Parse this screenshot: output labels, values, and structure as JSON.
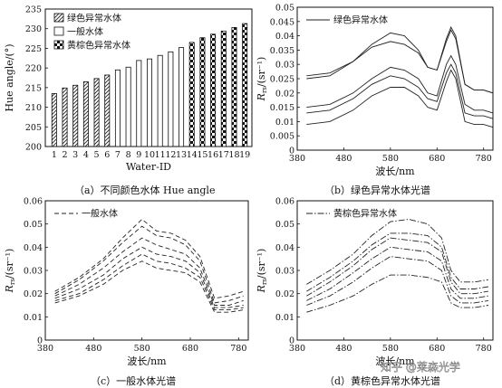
{
  "captions": [
    "（a）不同颜色水体 Hue angle",
    "（b）绿色异常水体光谱",
    "（c）一般水体光谱",
    "（d）黄棕色异常水体光谱"
  ],
  "watermark": "知乎 @莱森光学",
  "chart_data": [
    {
      "type": "bar",
      "xlabel": "Water-ID",
      "ylabel": "Hue angle/(°)",
      "ylim": [
        200,
        235
      ],
      "yticks": [
        200,
        205,
        210,
        215,
        220,
        225,
        230,
        235
      ],
      "categories": [
        "1",
        "2",
        "3",
        "4",
        "5",
        "6",
        "7",
        "8",
        "9",
        "10",
        "11",
        "12",
        "13",
        "14",
        "15",
        "16",
        "17",
        "18",
        "19"
      ],
      "series": [
        {
          "name": "绿色异常水体",
          "pattern": "hatch",
          "values": [
            213.5,
            214.9,
            215.6,
            216.5,
            217.3,
            218.2,
            null,
            null,
            null,
            null,
            null,
            null,
            null,
            null,
            null,
            null,
            null,
            null,
            null
          ]
        },
        {
          "name": "一般水体",
          "pattern": "solid",
          "values": [
            null,
            null,
            null,
            null,
            null,
            null,
            219.5,
            220.2,
            221.9,
            222.3,
            223.2,
            224.1,
            225.2,
            null,
            null,
            null,
            null,
            null,
            null
          ]
        },
        {
          "name": "黄棕色异常水体",
          "pattern": "checker",
          "values": [
            null,
            null,
            null,
            null,
            null,
            null,
            null,
            null,
            null,
            null,
            null,
            null,
            null,
            226.5,
            227.7,
            228.6,
            229.4,
            230.3,
            231.3
          ]
        }
      ],
      "legend_position": "top-left"
    },
    {
      "type": "line",
      "xlabel": "波长/nm",
      "ylabel": "Rrs/(sr⁻¹)",
      "xlim": [
        380,
        800
      ],
      "ylim": [
        0,
        0.05
      ],
      "xticks": [
        380,
        480,
        580,
        680,
        780
      ],
      "yticks": [
        0,
        0.005,
        0.01,
        0.015,
        0.02,
        0.025,
        0.03,
        0.035,
        0.04,
        0.045,
        0.05
      ],
      "legend": "绿色异常水体",
      "legend_position": "top-left",
      "line_style": "solid",
      "series": [
        {
          "x": [
            400,
            450,
            500,
            540,
            580,
            610,
            640,
            660,
            680,
            700,
            710,
            720,
            740,
            760,
            780,
            800
          ],
          "y": [
            0.025,
            0.026,
            0.031,
            0.037,
            0.041,
            0.04,
            0.035,
            0.029,
            0.028,
            0.039,
            0.043,
            0.04,
            0.023,
            0.021,
            0.021,
            0.02
          ]
        },
        {
          "x": [
            400,
            450,
            500,
            540,
            580,
            610,
            640,
            660,
            680,
            700,
            710,
            720,
            740,
            760,
            780,
            800
          ],
          "y": [
            0.026,
            0.027,
            0.031,
            0.036,
            0.038,
            0.037,
            0.034,
            0.029,
            0.028,
            0.038,
            0.042,
            0.039,
            0.023,
            0.021,
            0.021,
            0.02
          ]
        },
        {
          "x": [
            400,
            450,
            500,
            540,
            580,
            610,
            640,
            660,
            680,
            700,
            710,
            720,
            740,
            760,
            780,
            800
          ],
          "y": [
            0.015,
            0.016,
            0.02,
            0.025,
            0.029,
            0.028,
            0.025,
            0.02,
            0.019,
            0.03,
            0.033,
            0.03,
            0.016,
            0.014,
            0.014,
            0.013
          ]
        },
        {
          "x": [
            400,
            450,
            500,
            540,
            580,
            610,
            640,
            660,
            680,
            700,
            710,
            720,
            740,
            760,
            780,
            800
          ],
          "y": [
            0.013,
            0.014,
            0.018,
            0.023,
            0.026,
            0.025,
            0.022,
            0.018,
            0.017,
            0.027,
            0.03,
            0.027,
            0.013,
            0.012,
            0.012,
            0.011
          ]
        },
        {
          "x": [
            400,
            450,
            500,
            540,
            580,
            610,
            640,
            660,
            680,
            700,
            710,
            720,
            740,
            760,
            780,
            800
          ],
          "y": [
            0.009,
            0.01,
            0.014,
            0.019,
            0.022,
            0.022,
            0.019,
            0.015,
            0.014,
            0.024,
            0.028,
            0.025,
            0.01,
            0.009,
            0.009,
            0.008
          ]
        }
      ]
    },
    {
      "type": "line",
      "xlabel": "波长/nm",
      "ylabel": "Rrs/(sr⁻¹)",
      "xlim": [
        380,
        800
      ],
      "ylim": [
        0,
        0.06
      ],
      "xticks": [
        380,
        480,
        580,
        680,
        780
      ],
      "yticks": [
        0,
        0.01,
        0.02,
        0.03,
        0.04,
        0.05,
        0.06
      ],
      "legend": "一般水体",
      "legend_position": "top-left",
      "line_style": "dashed",
      "series": [
        {
          "x": [
            400,
            450,
            500,
            540,
            580,
            610,
            640,
            670,
            700,
            730,
            760,
            790
          ],
          "y": [
            0.021,
            0.027,
            0.035,
            0.044,
            0.052,
            0.047,
            0.046,
            0.043,
            0.036,
            0.018,
            0.019,
            0.021
          ]
        },
        {
          "x": [
            400,
            450,
            500,
            540,
            580,
            610,
            640,
            670,
            700,
            730,
            760,
            790
          ],
          "y": [
            0.02,
            0.026,
            0.034,
            0.042,
            0.049,
            0.045,
            0.044,
            0.041,
            0.034,
            0.016,
            0.017,
            0.019
          ]
        },
        {
          "x": [
            400,
            450,
            500,
            540,
            580,
            610,
            640,
            670,
            700,
            730,
            760,
            790
          ],
          "y": [
            0.019,
            0.024,
            0.031,
            0.038,
            0.044,
            0.041,
            0.039,
            0.037,
            0.031,
            0.015,
            0.015,
            0.017
          ]
        },
        {
          "x": [
            400,
            450,
            500,
            540,
            580,
            610,
            640,
            670,
            700,
            730,
            760,
            790
          ],
          "y": [
            0.018,
            0.022,
            0.028,
            0.035,
            0.04,
            0.037,
            0.036,
            0.034,
            0.029,
            0.014,
            0.014,
            0.015
          ]
        },
        {
          "x": [
            400,
            450,
            500,
            540,
            580,
            610,
            640,
            670,
            700,
            730,
            760,
            790
          ],
          "y": [
            0.017,
            0.02,
            0.026,
            0.032,
            0.037,
            0.034,
            0.033,
            0.031,
            0.027,
            0.013,
            0.013,
            0.014
          ]
        },
        {
          "x": [
            400,
            450,
            500,
            540,
            580,
            610,
            640,
            670,
            700,
            730,
            760,
            790
          ],
          "y": [
            0.016,
            0.019,
            0.024,
            0.03,
            0.034,
            0.031,
            0.03,
            0.029,
            0.025,
            0.012,
            0.012,
            0.013
          ]
        }
      ]
    },
    {
      "type": "line",
      "xlabel": "波长/nm",
      "ylabel": "Rrs/(sr⁻¹)",
      "xlim": [
        380,
        800
      ],
      "ylim": [
        0,
        0.06
      ],
      "xticks": [
        380,
        480,
        580,
        680,
        780
      ],
      "yticks": [
        0,
        0.01,
        0.02,
        0.03,
        0.04,
        0.05,
        0.06
      ],
      "legend": "黄棕色异常水体",
      "legend_position": "top-left",
      "line_style": "dashdot",
      "series": [
        {
          "x": [
            400,
            450,
            500,
            540,
            580,
            620,
            660,
            690,
            710,
            730,
            760,
            790
          ],
          "y": [
            0.024,
            0.03,
            0.037,
            0.045,
            0.051,
            0.052,
            0.05,
            0.044,
            0.03,
            0.025,
            0.025,
            0.026
          ]
        },
        {
          "x": [
            400,
            450,
            500,
            540,
            580,
            620,
            660,
            690,
            710,
            730,
            760,
            790
          ],
          "y": [
            0.021,
            0.027,
            0.034,
            0.041,
            0.046,
            0.046,
            0.045,
            0.04,
            0.027,
            0.022,
            0.022,
            0.023
          ]
        },
        {
          "x": [
            400,
            450,
            500,
            540,
            580,
            620,
            660,
            690,
            710,
            730,
            760,
            790
          ],
          "y": [
            0.019,
            0.025,
            0.032,
            0.039,
            0.044,
            0.043,
            0.042,
            0.038,
            0.025,
            0.02,
            0.02,
            0.021
          ]
        },
        {
          "x": [
            400,
            450,
            500,
            540,
            580,
            620,
            660,
            690,
            710,
            730,
            760,
            790
          ],
          "y": [
            0.017,
            0.022,
            0.029,
            0.035,
            0.04,
            0.039,
            0.038,
            0.034,
            0.022,
            0.018,
            0.018,
            0.019
          ]
        },
        {
          "x": [
            400,
            450,
            500,
            540,
            580,
            620,
            660,
            690,
            710,
            730,
            760,
            790
          ],
          "y": [
            0.015,
            0.019,
            0.025,
            0.031,
            0.036,
            0.035,
            0.034,
            0.03,
            0.019,
            0.016,
            0.016,
            0.017
          ]
        },
        {
          "x": [
            400,
            450,
            500,
            540,
            580,
            620,
            660,
            690,
            710,
            730,
            760,
            790
          ],
          "y": [
            0.012,
            0.015,
            0.019,
            0.024,
            0.028,
            0.028,
            0.027,
            0.025,
            0.016,
            0.014,
            0.014,
            0.015
          ]
        }
      ]
    }
  ]
}
